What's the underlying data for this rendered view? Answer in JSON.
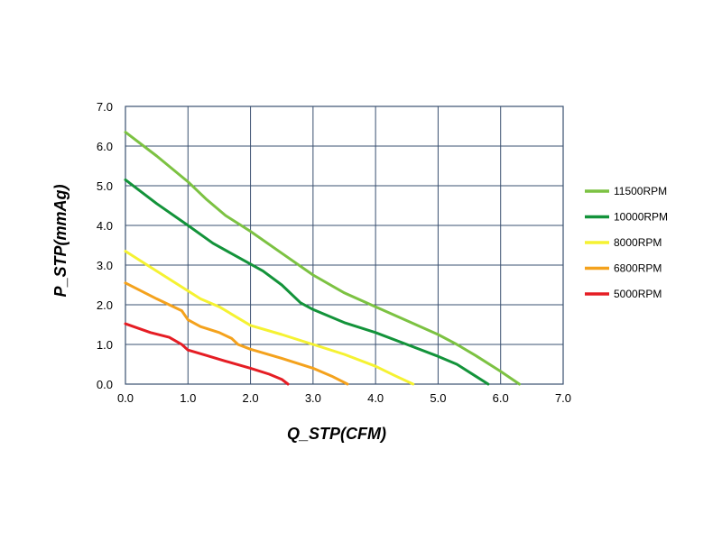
{
  "chart_data": {
    "type": "line",
    "title": "",
    "xlabel": "Q_STP(CFM)",
    "ylabel": "P_STP(mmAg)",
    "xlim": [
      0,
      7
    ],
    "ylim": [
      0,
      7
    ],
    "x_ticks": [
      "0.0",
      "1.0",
      "2.0",
      "3.0",
      "4.0",
      "5.0",
      "6.0",
      "7.0"
    ],
    "y_ticks": [
      "0.0",
      "1.0",
      "2.0",
      "3.0",
      "4.0",
      "5.0",
      "6.0",
      "7.0"
    ],
    "grid": true,
    "legend_position": "right",
    "series": [
      {
        "name": "11500RPM",
        "color": "#7cc242",
        "points": [
          [
            0,
            6.35
          ],
          [
            0.5,
            5.75
          ],
          [
            1.0,
            5.1
          ],
          [
            1.3,
            4.65
          ],
          [
            1.6,
            4.25
          ],
          [
            2.0,
            3.85
          ],
          [
            2.5,
            3.3
          ],
          [
            3.0,
            2.75
          ],
          [
            3.5,
            2.3
          ],
          [
            4.0,
            1.95
          ],
          [
            4.5,
            1.6
          ],
          [
            5.0,
            1.25
          ],
          [
            5.3,
            1.0
          ],
          [
            5.6,
            0.72
          ],
          [
            6.0,
            0.32
          ],
          [
            6.3,
            0.0
          ]
        ]
      },
      {
        "name": "10000RPM",
        "color": "#13933a",
        "points": [
          [
            0,
            5.15
          ],
          [
            0.5,
            4.55
          ],
          [
            1.0,
            4.0
          ],
          [
            1.4,
            3.55
          ],
          [
            1.8,
            3.2
          ],
          [
            2.2,
            2.85
          ],
          [
            2.5,
            2.5
          ],
          [
            2.8,
            2.05
          ],
          [
            3.0,
            1.88
          ],
          [
            3.5,
            1.55
          ],
          [
            4.0,
            1.3
          ],
          [
            4.5,
            1.0
          ],
          [
            5.0,
            0.7
          ],
          [
            5.3,
            0.5
          ],
          [
            5.6,
            0.2
          ],
          [
            5.8,
            0.0
          ]
        ]
      },
      {
        "name": "8000RPM",
        "color": "#f5f232",
        "points": [
          [
            0,
            3.35
          ],
          [
            0.5,
            2.85
          ],
          [
            1.0,
            2.35
          ],
          [
            1.2,
            2.15
          ],
          [
            1.5,
            1.95
          ],
          [
            2.0,
            1.48
          ],
          [
            2.5,
            1.25
          ],
          [
            3.0,
            1.0
          ],
          [
            3.5,
            0.75
          ],
          [
            4.0,
            0.45
          ],
          [
            4.3,
            0.22
          ],
          [
            4.6,
            0.0
          ]
        ]
      },
      {
        "name": "6800RPM",
        "color": "#f4a21d",
        "points": [
          [
            0,
            2.55
          ],
          [
            0.5,
            2.15
          ],
          [
            0.9,
            1.85
          ],
          [
            1.0,
            1.62
          ],
          [
            1.2,
            1.45
          ],
          [
            1.5,
            1.3
          ],
          [
            1.7,
            1.15
          ],
          [
            1.8,
            1.0
          ],
          [
            2.0,
            0.88
          ],
          [
            2.5,
            0.65
          ],
          [
            3.0,
            0.4
          ],
          [
            3.3,
            0.2
          ],
          [
            3.55,
            0.0
          ]
        ]
      },
      {
        "name": "5000RPM",
        "color": "#e51d24",
        "points": [
          [
            0,
            1.52
          ],
          [
            0.4,
            1.3
          ],
          [
            0.7,
            1.18
          ],
          [
            0.9,
            1.0
          ],
          [
            1.0,
            0.86
          ],
          [
            1.3,
            0.72
          ],
          [
            1.6,
            0.58
          ],
          [
            2.0,
            0.4
          ],
          [
            2.3,
            0.25
          ],
          [
            2.5,
            0.12
          ],
          [
            2.6,
            0.0
          ]
        ]
      }
    ]
  }
}
